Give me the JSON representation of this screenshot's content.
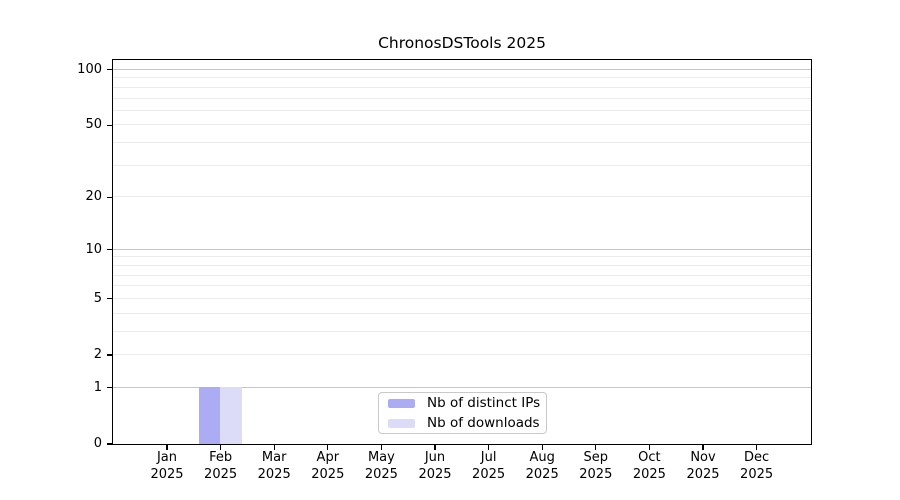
{
  "figure": {
    "title": "ChronosDSTools 2025"
  },
  "chart_data": {
    "type": "bar",
    "title": "ChronosDSTools 2025",
    "categories": [
      "Jan",
      "Feb",
      "Mar",
      "Apr",
      "May",
      "Jun",
      "Jul",
      "Aug",
      "Sep",
      "Oct",
      "Nov",
      "Dec"
    ],
    "year_label": "2025",
    "series": [
      {
        "name": "Nb of distinct IPs",
        "color": "#acacf5",
        "values": [
          0,
          1,
          0,
          0,
          0,
          0,
          0,
          0,
          0,
          0,
          0,
          0
        ]
      },
      {
        "name": "Nb of downloads",
        "color": "#dcdcf9",
        "values": [
          0,
          1,
          0,
          0,
          0,
          0,
          0,
          0,
          0,
          0,
          0,
          0
        ]
      }
    ],
    "yscale": "log1p",
    "ylim": [
      0,
      113
    ],
    "yticks": [
      0,
      1,
      2,
      5,
      10,
      20,
      50,
      100
    ],
    "grid": {
      "major_values": [
        1,
        10,
        100
      ],
      "minor_values": [
        2,
        3,
        4,
        5,
        6,
        7,
        8,
        9,
        20,
        30,
        40,
        50,
        60,
        70,
        80,
        90
      ],
      "major_color": "#c6c6c6",
      "minor_color": "#ebebeb"
    },
    "legend": {
      "position": "bottom-center-inside"
    },
    "axis_color": "#000000",
    "background": "#ffffff"
  }
}
